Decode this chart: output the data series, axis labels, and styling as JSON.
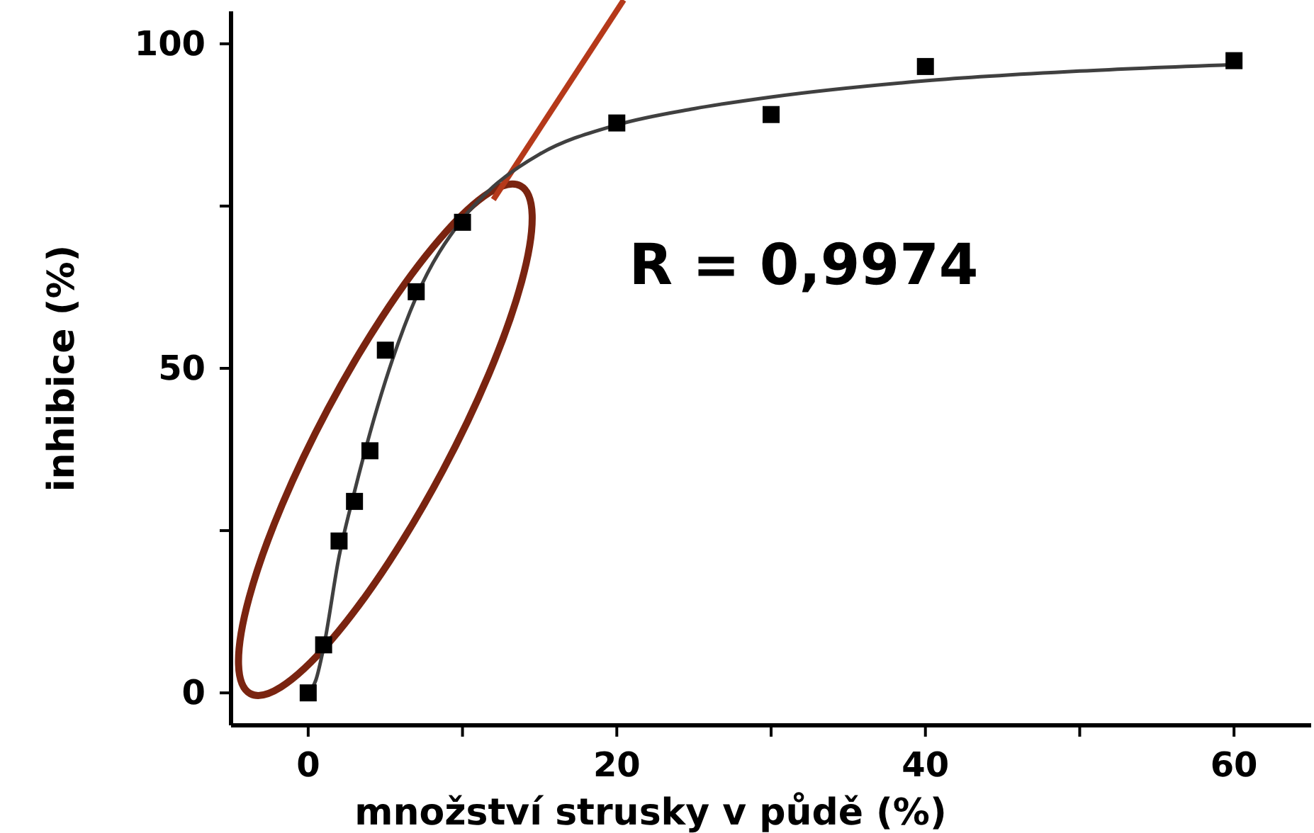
{
  "chart_data": {
    "type": "scatter",
    "xlabel": "množství strusky v půdě (%)",
    "ylabel": "inhibice (%)",
    "xlim": [
      -5,
      65
    ],
    "ylim": [
      -5,
      105
    ],
    "xticks": [
      0,
      {
        "value": 10,
        "label": null
      },
      20,
      {
        "value": 30,
        "label": null
      },
      40,
      {
        "value": 50,
        "label": null
      },
      60
    ],
    "yticks": [
      0,
      {
        "value": 25,
        "label": null
      },
      50,
      {
        "value": 75,
        "label": null
      },
      100
    ],
    "grid": false,
    "annotations": [
      "R = 0,9974"
    ],
    "series": [
      {
        "color": "#000000",
        "marker": "square",
        "x": [
          0,
          1,
          2,
          3,
          4,
          5,
          7,
          10,
          20,
          30,
          40,
          60
        ],
        "values": [
          0,
          7.4,
          23.4,
          29.5,
          37.3,
          52.8,
          61.8,
          72.5,
          87.8,
          89.1,
          96.5,
          97.4
        ]
      },
      {
        "type": "line",
        "color": "#404040",
        "marker": "none",
        "line_style": "solid",
        "x": [
          0,
          0.5,
          1,
          2,
          3,
          4,
          5,
          7,
          10,
          12,
          15,
          20,
          25,
          30,
          40,
          50,
          60
        ],
        "values": [
          0,
          2,
          7,
          21,
          31,
          40,
          48,
          61,
          73,
          78,
          83,
          87.5,
          90,
          91.8,
          94.3,
          95.8,
          96.8
        ]
      }
    ]
  }
}
